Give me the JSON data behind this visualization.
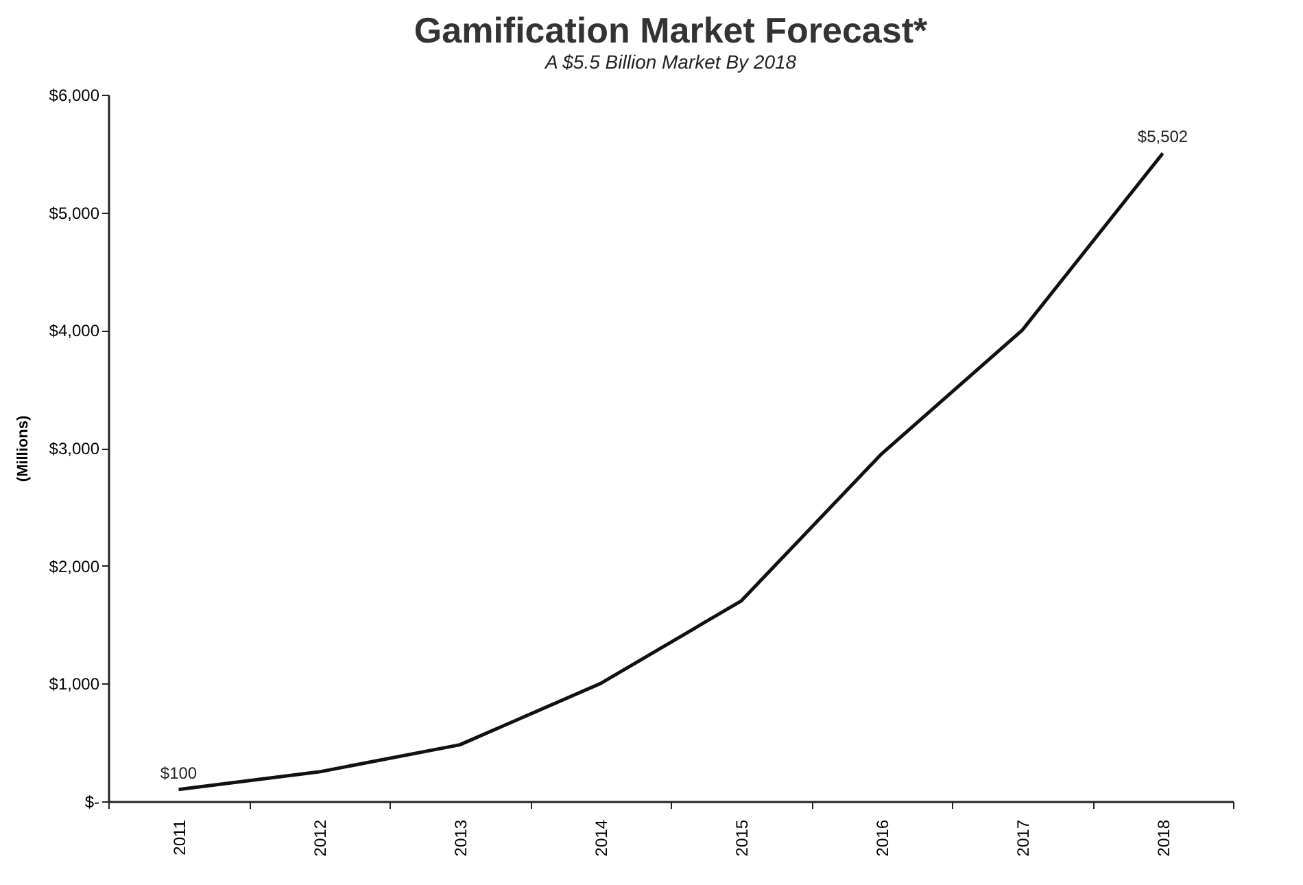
{
  "chart_data": {
    "type": "line",
    "title": "Gamification Market Forecast*",
    "subtitle": "A $5.5 Billion Market By 2018",
    "ylabel": "(Millions)",
    "categories": [
      "2011",
      "2012",
      "2013",
      "2014",
      "2015",
      "2016",
      "2017",
      "2018"
    ],
    "series": [
      {
        "color": "#111111",
        "values": [
          100,
          250,
          480,
          1000,
          1700,
          2950,
          4000,
          5502
        ],
        "value_labels": [
          "$100",
          null,
          null,
          null,
          null,
          null,
          null,
          "$5,502"
        ]
      }
    ],
    "ylim": [
      0,
      6000
    ],
    "yticks": [
      {
        "value": 0,
        "label": "$-"
      },
      {
        "value": 1000,
        "label": "$1,000"
      },
      {
        "value": 2000,
        "label": "$2,000"
      },
      {
        "value": 3000,
        "label": "$3,000"
      },
      {
        "value": 4000,
        "label": "$4,000"
      },
      {
        "value": 5000,
        "label": "$5,000"
      },
      {
        "value": 6000,
        "label": "$6,000"
      }
    ],
    "grid": false,
    "legend": false,
    "marker": "none",
    "line_style": "solid"
  }
}
